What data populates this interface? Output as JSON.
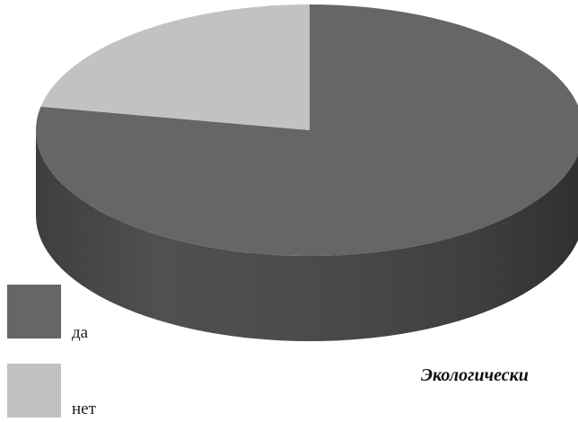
{
  "chart_data": {
    "type": "pie",
    "style": "3d",
    "categories": [
      "да",
      "нет"
    ],
    "values": [
      78,
      22
    ],
    "unit": "%",
    "colors": [
      "#666666",
      "#c2c2c2"
    ],
    "legend": {
      "placement": "bottom-left",
      "entries": [
        {
          "label": "да",
          "color": "#666666"
        },
        {
          "label": "нет",
          "color": "#c2c2c2"
        }
      ]
    },
    "caption": "Экологически"
  }
}
